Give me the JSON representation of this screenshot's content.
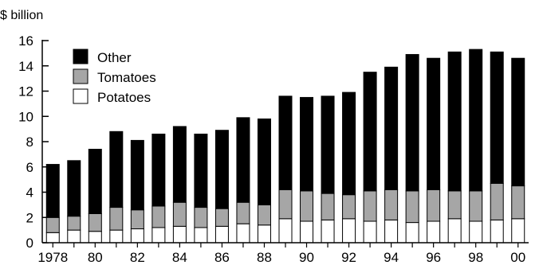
{
  "chart_data": {
    "type": "bar",
    "stacked": true,
    "title": "",
    "ylabel": "$ billion",
    "xlabel": "",
    "ylim": [
      0,
      16
    ],
    "yticks": [
      0,
      2,
      4,
      6,
      8,
      10,
      12,
      14,
      16
    ],
    "grid": false,
    "legend_position": "top-left",
    "categories": [
      "1978",
      "1979",
      "1980",
      "1981",
      "1982",
      "1983",
      "1984",
      "1985",
      "1986",
      "1987",
      "1988",
      "1989",
      "1990",
      "1991",
      "1992",
      "1993",
      "1994",
      "1995",
      "1996",
      "1997",
      "1998",
      "1999",
      "2000"
    ],
    "x_tick_labels": [
      "1978",
      "80",
      "82",
      "84",
      "86",
      "88",
      "90",
      "92",
      "94",
      "96",
      "98",
      "00"
    ],
    "x_tick_index": [
      0,
      2,
      4,
      6,
      8,
      10,
      12,
      14,
      16,
      18,
      20,
      22
    ],
    "series": [
      {
        "name": "Potatoes",
        "color": "#ffffff",
        "values": [
          0.8,
          1.0,
          0.9,
          1.0,
          1.1,
          1.2,
          1.3,
          1.2,
          1.3,
          1.5,
          1.4,
          1.9,
          1.7,
          1.8,
          1.9,
          1.7,
          1.8,
          1.6,
          1.7,
          1.9,
          1.7,
          1.8,
          1.9
        ]
      },
      {
        "name": "Tomatoes",
        "color": "#a6a6a6",
        "values": [
          1.2,
          1.1,
          1.4,
          1.8,
          1.5,
          1.7,
          1.9,
          1.6,
          1.4,
          1.7,
          1.6,
          2.3,
          2.4,
          2.1,
          1.9,
          2.4,
          2.4,
          2.5,
          2.5,
          2.2,
          2.4,
          2.9,
          2.6
        ]
      },
      {
        "name": "Other",
        "color": "#000000",
        "values": [
          4.2,
          4.4,
          5.1,
          6.0,
          5.5,
          5.7,
          6.0,
          5.8,
          6.2,
          6.7,
          6.8,
          7.4,
          7.4,
          7.7,
          8.1,
          9.4,
          9.7,
          10.8,
          10.4,
          11.0,
          11.2,
          10.4,
          10.1
        ]
      }
    ],
    "legend_order": [
      "Other",
      "Tomatoes",
      "Potatoes"
    ]
  }
}
